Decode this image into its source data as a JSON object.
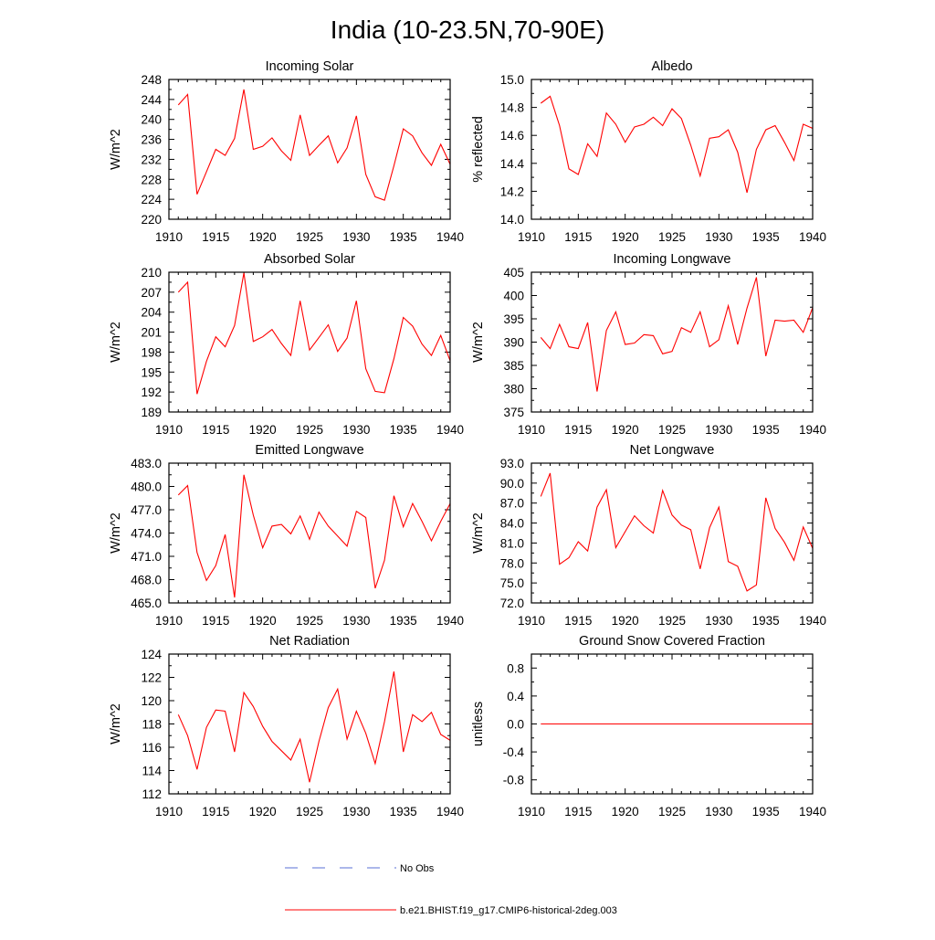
{
  "title": "India (10-23.5N,70-90E)",
  "legend": {
    "entries": [
      {
        "label": "No Obs",
        "color": "#5a6fd6",
        "style": "dashed"
      },
      {
        "label": "b.e21.BHIST.f19_g17.CMIP6-historical-2deg.003",
        "color": "#ff0000",
        "style": "solid"
      }
    ]
  },
  "chart_data": [
    {
      "type": "line",
      "title": "Incoming Solar",
      "ylabel": "W/m^2",
      "xlim": [
        1910,
        1940
      ],
      "ylim": [
        220,
        248
      ],
      "xticks": [
        1910,
        1915,
        1920,
        1925,
        1930,
        1935,
        1940
      ],
      "xticklabels": [
        "1910",
        "1915",
        "1920",
        "1925",
        "1930",
        "1935",
        "1940"
      ],
      "yticks": [
        220,
        224,
        228,
        232,
        236,
        240,
        244,
        248
      ],
      "yticklabels": [
        "220",
        "224",
        "228",
        "232",
        "236",
        "240",
        "244",
        "248"
      ],
      "x": [
        1911,
        1912,
        1913,
        1914,
        1915,
        1916,
        1917,
        1918,
        1919,
        1920,
        1921,
        1922,
        1923,
        1924,
        1925,
        1926,
        1927,
        1928,
        1929,
        1930,
        1931,
        1932,
        1933,
        1934,
        1935,
        1936,
        1937,
        1938,
        1939,
        1940
      ],
      "series": [
        {
          "color": "#ff0000",
          "values": [
            242.9,
            245.0,
            225.0,
            229.5,
            234.0,
            232.8,
            236.2,
            246.0,
            234.0,
            234.6,
            236.3,
            233.7,
            231.8,
            240.9,
            232.8,
            234.8,
            236.7,
            231.3,
            234.3,
            240.7,
            229.0,
            224.5,
            223.8,
            230.7,
            238.1,
            236.7,
            233.3,
            230.8,
            235.0,
            231.0
          ]
        }
      ]
    },
    {
      "type": "line",
      "title": "Albedo",
      "ylabel": "% reflected",
      "xlim": [
        1910,
        1940
      ],
      "ylim": [
        14.0,
        15.0
      ],
      "xticks": [
        1910,
        1915,
        1920,
        1925,
        1930,
        1935,
        1940
      ],
      "xticklabels": [
        "1910",
        "1915",
        "1920",
        "1925",
        "1930",
        "1935",
        "1940"
      ],
      "yticks": [
        14.0,
        14.2,
        14.4,
        14.6,
        14.8,
        15.0
      ],
      "yticklabels": [
        "14.0",
        "14.2",
        "14.4",
        "14.6",
        "14.8",
        "15.0"
      ],
      "x": [
        1911,
        1912,
        1913,
        1914,
        1915,
        1916,
        1917,
        1918,
        1919,
        1920,
        1921,
        1922,
        1923,
        1924,
        1925,
        1926,
        1927,
        1928,
        1929,
        1930,
        1931,
        1932,
        1933,
        1934,
        1935,
        1936,
        1937,
        1938,
        1939,
        1940
      ],
      "series": [
        {
          "color": "#ff0000",
          "values": [
            14.83,
            14.88,
            14.67,
            14.36,
            14.32,
            14.54,
            14.45,
            14.76,
            14.68,
            14.55,
            14.66,
            14.68,
            14.73,
            14.67,
            14.79,
            14.72,
            14.53,
            14.31,
            14.58,
            14.59,
            14.64,
            14.48,
            14.19,
            14.5,
            14.64,
            14.67,
            14.55,
            14.42,
            14.68,
            14.65
          ]
        }
      ]
    },
    {
      "type": "line",
      "title": "Absorbed Solar",
      "ylabel": "W/m^2",
      "xlim": [
        1910,
        1940
      ],
      "ylim": [
        189,
        210
      ],
      "xticks": [
        1910,
        1915,
        1920,
        1925,
        1930,
        1935,
        1940
      ],
      "xticklabels": [
        "1910",
        "1915",
        "1920",
        "1925",
        "1930",
        "1935",
        "1940"
      ],
      "yticks": [
        189,
        192,
        195,
        198,
        201,
        204,
        207,
        210
      ],
      "yticklabels": [
        "189",
        "192",
        "195",
        "198",
        "201",
        "204",
        "207",
        "210"
      ],
      "x": [
        1911,
        1912,
        1913,
        1914,
        1915,
        1916,
        1917,
        1918,
        1919,
        1920,
        1921,
        1922,
        1923,
        1924,
        1925,
        1926,
        1927,
        1928,
        1929,
        1930,
        1931,
        1932,
        1933,
        1934,
        1935,
        1936,
        1937,
        1938,
        1939,
        1940
      ],
      "series": [
        {
          "color": "#ff0000",
          "values": [
            207.0,
            208.5,
            191.7,
            196.6,
            200.3,
            198.8,
            202.0,
            209.9,
            199.6,
            200.3,
            201.4,
            199.3,
            197.5,
            205.7,
            198.3,
            200.2,
            202.1,
            198.1,
            200.1,
            205.7,
            195.5,
            192.1,
            191.9,
            197.0,
            203.2,
            201.9,
            199.2,
            197.5,
            200.5,
            196.7
          ]
        }
      ]
    },
    {
      "type": "line",
      "title": "Incoming Longwave",
      "ylabel": "W/m^2",
      "xlim": [
        1910,
        1940
      ],
      "ylim": [
        375,
        405
      ],
      "xticks": [
        1910,
        1915,
        1920,
        1925,
        1930,
        1935,
        1940
      ],
      "xticklabels": [
        "1910",
        "1915",
        "1920",
        "1925",
        "1930",
        "1935",
        "1940"
      ],
      "yticks": [
        375,
        380,
        385,
        390,
        395,
        400,
        405
      ],
      "yticklabels": [
        "375",
        "380",
        "385",
        "390",
        "395",
        "400",
        "405"
      ],
      "x": [
        1911,
        1912,
        1913,
        1914,
        1915,
        1916,
        1917,
        1918,
        1919,
        1920,
        1921,
        1922,
        1923,
        1924,
        1925,
        1926,
        1927,
        1928,
        1929,
        1930,
        1931,
        1932,
        1933,
        1934,
        1935,
        1936,
        1937,
        1938,
        1939,
        1940
      ],
      "series": [
        {
          "color": "#ff0000",
          "values": [
            391.0,
            388.6,
            393.8,
            389.0,
            388.6,
            394.2,
            379.4,
            392.5,
            396.5,
            389.5,
            389.8,
            391.6,
            391.4,
            387.5,
            388.0,
            393.1,
            392.1,
            396.5,
            389.0,
            390.5,
            397.8,
            389.5,
            397.3,
            403.9,
            387.0,
            394.7,
            394.5,
            394.7,
            392.1,
            397.4
          ]
        }
      ]
    },
    {
      "type": "line",
      "title": "Emitted Longwave",
      "ylabel": "W/m^2",
      "xlim": [
        1910,
        1940
      ],
      "ylim": [
        465.0,
        483.0
      ],
      "xticks": [
        1910,
        1915,
        1920,
        1925,
        1930,
        1935,
        1940
      ],
      "xticklabels": [
        "1910",
        "1915",
        "1920",
        "1925",
        "1930",
        "1935",
        "1940"
      ],
      "yticks": [
        465.0,
        468.0,
        471.0,
        474.0,
        477.0,
        480.0,
        483.0
      ],
      "yticklabels": [
        "465.0",
        "468.0",
        "471.0",
        "474.0",
        "477.0",
        "480.0",
        "483.0"
      ],
      "x": [
        1911,
        1912,
        1913,
        1914,
        1915,
        1916,
        1917,
        1918,
        1919,
        1920,
        1921,
        1922,
        1923,
        1924,
        1925,
        1926,
        1927,
        1928,
        1929,
        1930,
        1931,
        1932,
        1933,
        1934,
        1935,
        1936,
        1937,
        1938,
        1939,
        1940
      ],
      "series": [
        {
          "color": "#ff0000",
          "values": [
            478.9,
            480.1,
            471.5,
            467.9,
            469.8,
            473.8,
            465.7,
            481.5,
            476.3,
            472.1,
            474.9,
            475.1,
            473.9,
            476.2,
            473.2,
            476.7,
            474.9,
            473.6,
            472.3,
            476.8,
            476.0,
            466.9,
            470.5,
            478.8,
            474.8,
            477.8,
            475.5,
            473.0,
            475.5,
            477.8
          ]
        }
      ]
    },
    {
      "type": "line",
      "title": "Net Longwave",
      "ylabel": "W/m^2",
      "xlim": [
        1910,
        1940
      ],
      "ylim": [
        72.0,
        93.0
      ],
      "xticks": [
        1910,
        1915,
        1920,
        1925,
        1930,
        1935,
        1940
      ],
      "xticklabels": [
        "1910",
        "1915",
        "1920",
        "1925",
        "1930",
        "1935",
        "1940"
      ],
      "yticks": [
        72.0,
        75.0,
        78.0,
        81.0,
        84.0,
        87.0,
        90.0,
        93.0
      ],
      "yticklabels": [
        "72.0",
        "75.0",
        "78.0",
        "81.0",
        "84.0",
        "87.0",
        "90.0",
        "93.0"
      ],
      "x": [
        1911,
        1912,
        1913,
        1914,
        1915,
        1916,
        1917,
        1918,
        1919,
        1920,
        1921,
        1922,
        1923,
        1924,
        1925,
        1926,
        1927,
        1928,
        1929,
        1930,
        1931,
        1932,
        1933,
        1934,
        1935,
        1936,
        1937,
        1938,
        1939,
        1940
      ],
      "series": [
        {
          "color": "#ff0000",
          "values": [
            88.0,
            91.5,
            77.8,
            78.8,
            81.2,
            79.8,
            86.4,
            89.0,
            80.3,
            82.7,
            85.1,
            83.6,
            82.5,
            88.9,
            85.2,
            83.7,
            83.0,
            77.1,
            83.3,
            86.4,
            78.2,
            77.5,
            73.8,
            74.7,
            87.8,
            83.2,
            81.1,
            78.4,
            83.4,
            80.2
          ]
        }
      ]
    },
    {
      "type": "line",
      "title": "Net Radiation",
      "ylabel": "W/m^2",
      "xlim": [
        1910,
        1940
      ],
      "ylim": [
        112,
        124
      ],
      "xticks": [
        1910,
        1915,
        1920,
        1925,
        1930,
        1935,
        1940
      ],
      "xticklabels": [
        "1910",
        "1915",
        "1920",
        "1925",
        "1930",
        "1935",
        "1940"
      ],
      "yticks": [
        112,
        114,
        116,
        118,
        120,
        122,
        124
      ],
      "yticklabels": [
        "112",
        "114",
        "116",
        "118",
        "120",
        "122",
        "124"
      ],
      "x": [
        1911,
        1912,
        1913,
        1914,
        1915,
        1916,
        1917,
        1918,
        1919,
        1920,
        1921,
        1922,
        1923,
        1924,
        1925,
        1926,
        1927,
        1928,
        1929,
        1930,
        1931,
        1932,
        1933,
        1934,
        1935,
        1936,
        1937,
        1938,
        1939,
        1940
      ],
      "series": [
        {
          "color": "#ff0000",
          "values": [
            118.8,
            117.0,
            114.1,
            117.7,
            119.2,
            119.1,
            115.6,
            120.7,
            119.5,
            117.8,
            116.5,
            115.7,
            114.9,
            116.7,
            113.0,
            116.5,
            119.4,
            121.0,
            116.7,
            119.1,
            117.2,
            114.6,
            118.2,
            122.5,
            115.6,
            118.8,
            118.2,
            119.0,
            117.1,
            116.6
          ]
        }
      ]
    },
    {
      "type": "line",
      "title": "Ground Snow Covered Fraction",
      "ylabel": "unitless",
      "xlim": [
        1910,
        1940
      ],
      "ylim": [
        -1.0,
        1.0
      ],
      "xticks": [
        1910,
        1915,
        1920,
        1925,
        1930,
        1935,
        1940
      ],
      "xticklabels": [
        "1910",
        "1915",
        "1920",
        "1925",
        "1930",
        "1935",
        "1940"
      ],
      "yticks": [
        -0.8,
        -0.4,
        0.0,
        0.4,
        0.8
      ],
      "yticklabels": [
        "-0.8",
        "-0.4",
        "0.0",
        "0.4",
        "0.8"
      ],
      "x": [
        1911,
        1912,
        1913,
        1914,
        1915,
        1916,
        1917,
        1918,
        1919,
        1920,
        1921,
        1922,
        1923,
        1924,
        1925,
        1926,
        1927,
        1928,
        1929,
        1930,
        1931,
        1932,
        1933,
        1934,
        1935,
        1936,
        1937,
        1938,
        1939,
        1940
      ],
      "series": [
        {
          "color": "#ff0000",
          "values": [
            0,
            0,
            0,
            0,
            0,
            0,
            0,
            0,
            0,
            0,
            0,
            0,
            0,
            0,
            0,
            0,
            0,
            0,
            0,
            0,
            0,
            0,
            0,
            0,
            0,
            0,
            0,
            0,
            0,
            0
          ]
        }
      ]
    }
  ]
}
